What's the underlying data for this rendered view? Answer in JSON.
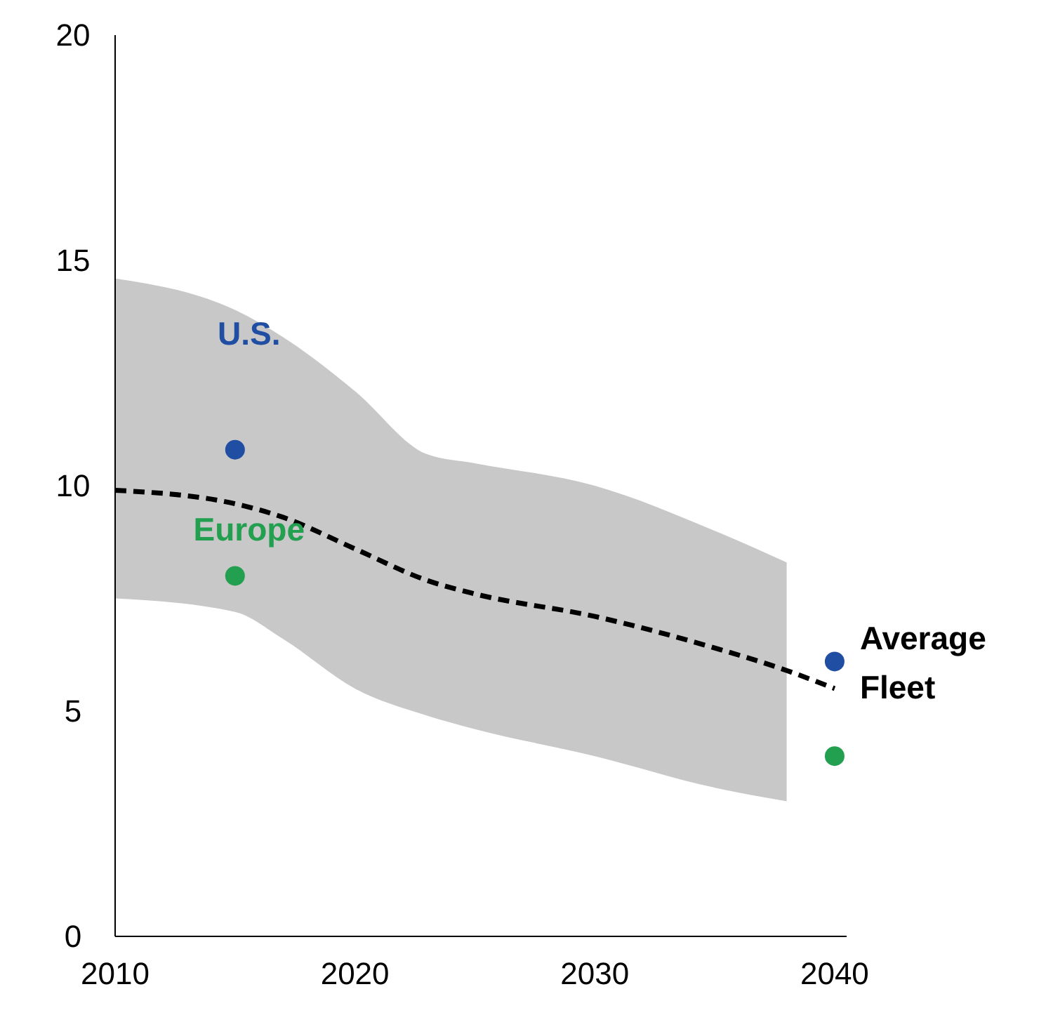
{
  "chart_data": {
    "type": "line",
    "xlim": [
      2010,
      2040.5
    ],
    "xticks": [
      2010,
      2020,
      2030,
      2040
    ],
    "ylim": [
      0,
      20
    ],
    "yticks": [
      0,
      5,
      10,
      15,
      20
    ],
    "grid": false,
    "series": [
      {
        "name": "Average Fleet",
        "color": "#000000",
        "line_style": "dashed",
        "x": [
          2010,
          2015,
          2017,
          2020,
          2023,
          2025,
          2030,
          2035,
          2038,
          2040
        ],
        "values": [
          9.9,
          9.6,
          9.3,
          8.6,
          7.9,
          7.6,
          7.1,
          6.4,
          5.9,
          5.5
        ],
        "upper": [
          14.6,
          13.9,
          13.3,
          12.1,
          10.7,
          10.5,
          10.0,
          9.0,
          8.3,
          null
        ],
        "lower": [
          7.5,
          7.2,
          6.6,
          5.5,
          4.9,
          4.6,
          4.0,
          3.3,
          3.0,
          null
        ]
      },
      {
        "name": "U.S.",
        "type": "scatter",
        "color": "#1f4ea3",
        "marker": "circle",
        "x": [
          2015,
          2040
        ],
        "values": [
          10.8,
          6.1
        ]
      },
      {
        "name": "Europe",
        "type": "scatter",
        "color": "#22a050",
        "marker": "circle",
        "x": [
          2015,
          2040
        ],
        "values": [
          8.0,
          4.0
        ]
      }
    ]
  }
}
